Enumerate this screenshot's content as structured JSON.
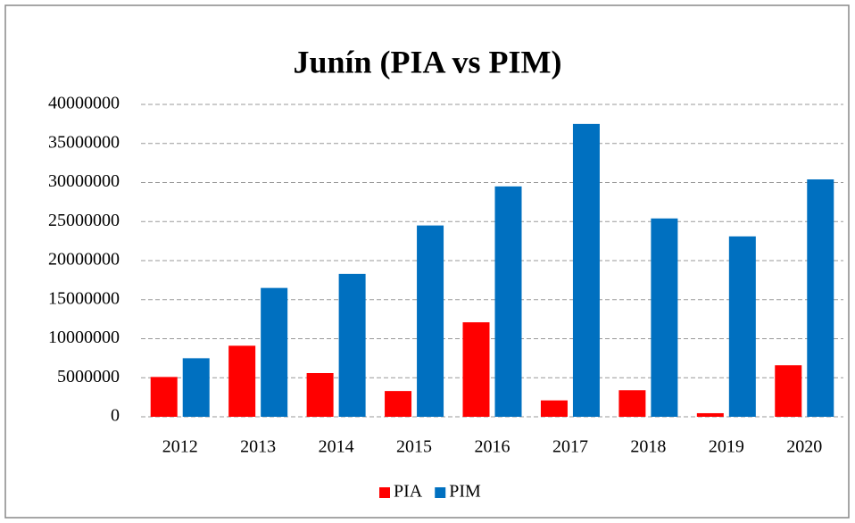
{
  "chart_data": {
    "type": "bar",
    "title": "Junín (PIA vs PIM)",
    "categories": [
      "2012",
      "2013",
      "2014",
      "2015",
      "2016",
      "2017",
      "2018",
      "2019",
      "2020"
    ],
    "series": [
      {
        "name": "PIA",
        "color": "#ff0000",
        "values": [
          5100000,
          9100000,
          5600000,
          3300000,
          12100000,
          2100000,
          3400000,
          460000,
          6600000
        ]
      },
      {
        "name": "PIM",
        "color": "#0070c0",
        "values": [
          7500000,
          16500000,
          18300000,
          24500000,
          29500000,
          37500000,
          25400000,
          23100000,
          30400000
        ]
      }
    ],
    "ylim": [
      0,
      40000000
    ],
    "yticks": [
      0,
      5000000,
      10000000,
      15000000,
      20000000,
      25000000,
      30000000,
      35000000,
      40000000
    ],
    "grid": true,
    "legend": "bottom"
  }
}
